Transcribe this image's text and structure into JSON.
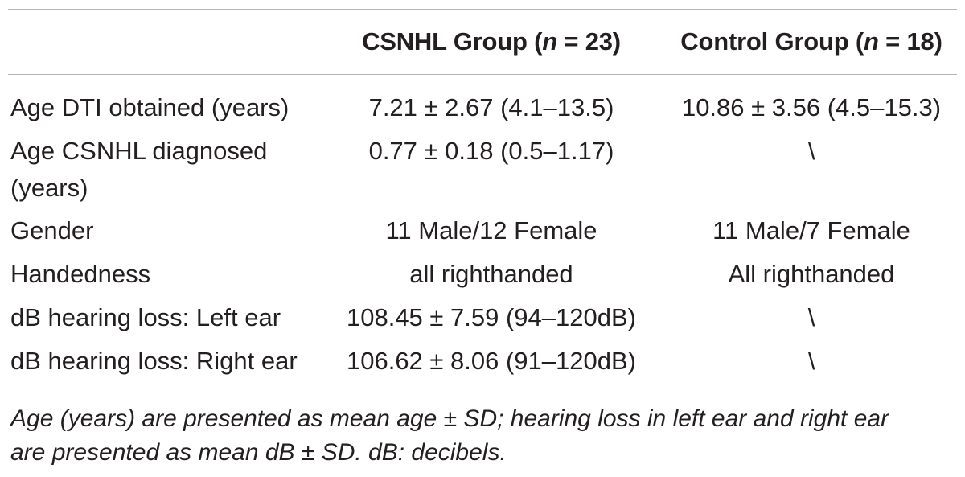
{
  "table": {
    "header": {
      "csnhl_group_label": "CSNHL Group (",
      "csnhl_n_symbol": "n",
      "csnhl_n_value": " = 23)",
      "control_group_label": "Control Group (",
      "control_n_symbol": "n",
      "control_n_value": " = 18)"
    },
    "rows": [
      {
        "label_line1": "Age DTI obtained (years)",
        "label_line2": "",
        "csnhl": "7.21 ± 2.67 (4.1–13.5)",
        "control": "10.86 ± 3.56 (4.5–15.3)"
      },
      {
        "label_line1": "Age CSNHL diagnosed",
        "label_line2": "(years)",
        "csnhl": "0.77 ± 0.18 (0.5–1.17)",
        "control": "\\"
      },
      {
        "label_line1": "Gender",
        "label_line2": "",
        "csnhl": "11 Male/12 Female",
        "control": "11 Male/7 Female"
      },
      {
        "label_line1": "Handedness",
        "label_line2": "",
        "csnhl": "all righthanded",
        "control": "All righthanded"
      },
      {
        "label_line1": "dB hearing loss: Left ear",
        "label_line2": "",
        "csnhl": "108.45 ± 7.59 (94–120dB)",
        "control": "\\"
      },
      {
        "label_line1": "dB hearing loss: Right ear",
        "label_line2": "",
        "csnhl": "106.62 ± 8.06 (91–120dB)",
        "control": "\\"
      }
    ]
  },
  "footnote": {
    "line1": "Age (years) are presented as mean age ± SD; hearing loss in left ear and right ear",
    "line2": "are presented as mean dB ± SD. dB: decibels."
  }
}
